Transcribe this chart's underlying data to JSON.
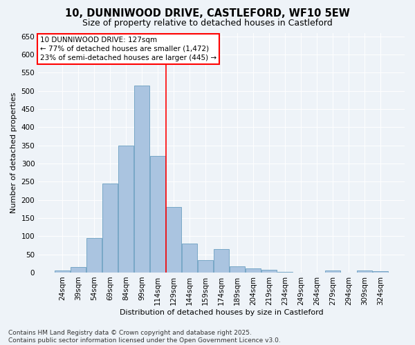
{
  "title": "10, DUNNIWOOD DRIVE, CASTLEFORD, WF10 5EW",
  "subtitle": "Size of property relative to detached houses in Castleford",
  "xlabel": "Distribution of detached houses by size in Castleford",
  "ylabel": "Number of detached properties",
  "categories": [
    "24sqm",
    "39sqm",
    "54sqm",
    "69sqm",
    "84sqm",
    "99sqm",
    "114sqm",
    "129sqm",
    "144sqm",
    "159sqm",
    "174sqm",
    "189sqm",
    "204sqm",
    "219sqm",
    "234sqm",
    "249sqm",
    "264sqm",
    "279sqm",
    "294sqm",
    "309sqm",
    "324sqm"
  ],
  "values": [
    5,
    15,
    95,
    245,
    350,
    515,
    320,
    180,
    80,
    35,
    65,
    17,
    12,
    8,
    2,
    0,
    0,
    5,
    0,
    5,
    3
  ],
  "bar_color": "#aac4e0",
  "bar_edge_color": "#6a9fc0",
  "bg_color": "#eef3f8",
  "vline_color": "red",
  "vline_x_index": 7,
  "annotation_text": "10 DUNNIWOOD DRIVE: 127sqm\n← 77% of detached houses are smaller (1,472)\n23% of semi-detached houses are larger (445) →",
  "annotation_box_color": "white",
  "annotation_box_edge_color": "red",
  "footnote": "Contains HM Land Registry data © Crown copyright and database right 2025.\nContains public sector information licensed under the Open Government Licence v3.0.",
  "ylim": [
    0,
    660
  ],
  "yticks": [
    0,
    50,
    100,
    150,
    200,
    250,
    300,
    350,
    400,
    450,
    500,
    550,
    600,
    650
  ],
  "title_fontsize": 10.5,
  "subtitle_fontsize": 9,
  "axis_label_fontsize": 8,
  "tick_fontsize": 7.5,
  "annotation_fontsize": 7.5,
  "footnote_fontsize": 6.5,
  "font_family": "DejaVu Sans"
}
